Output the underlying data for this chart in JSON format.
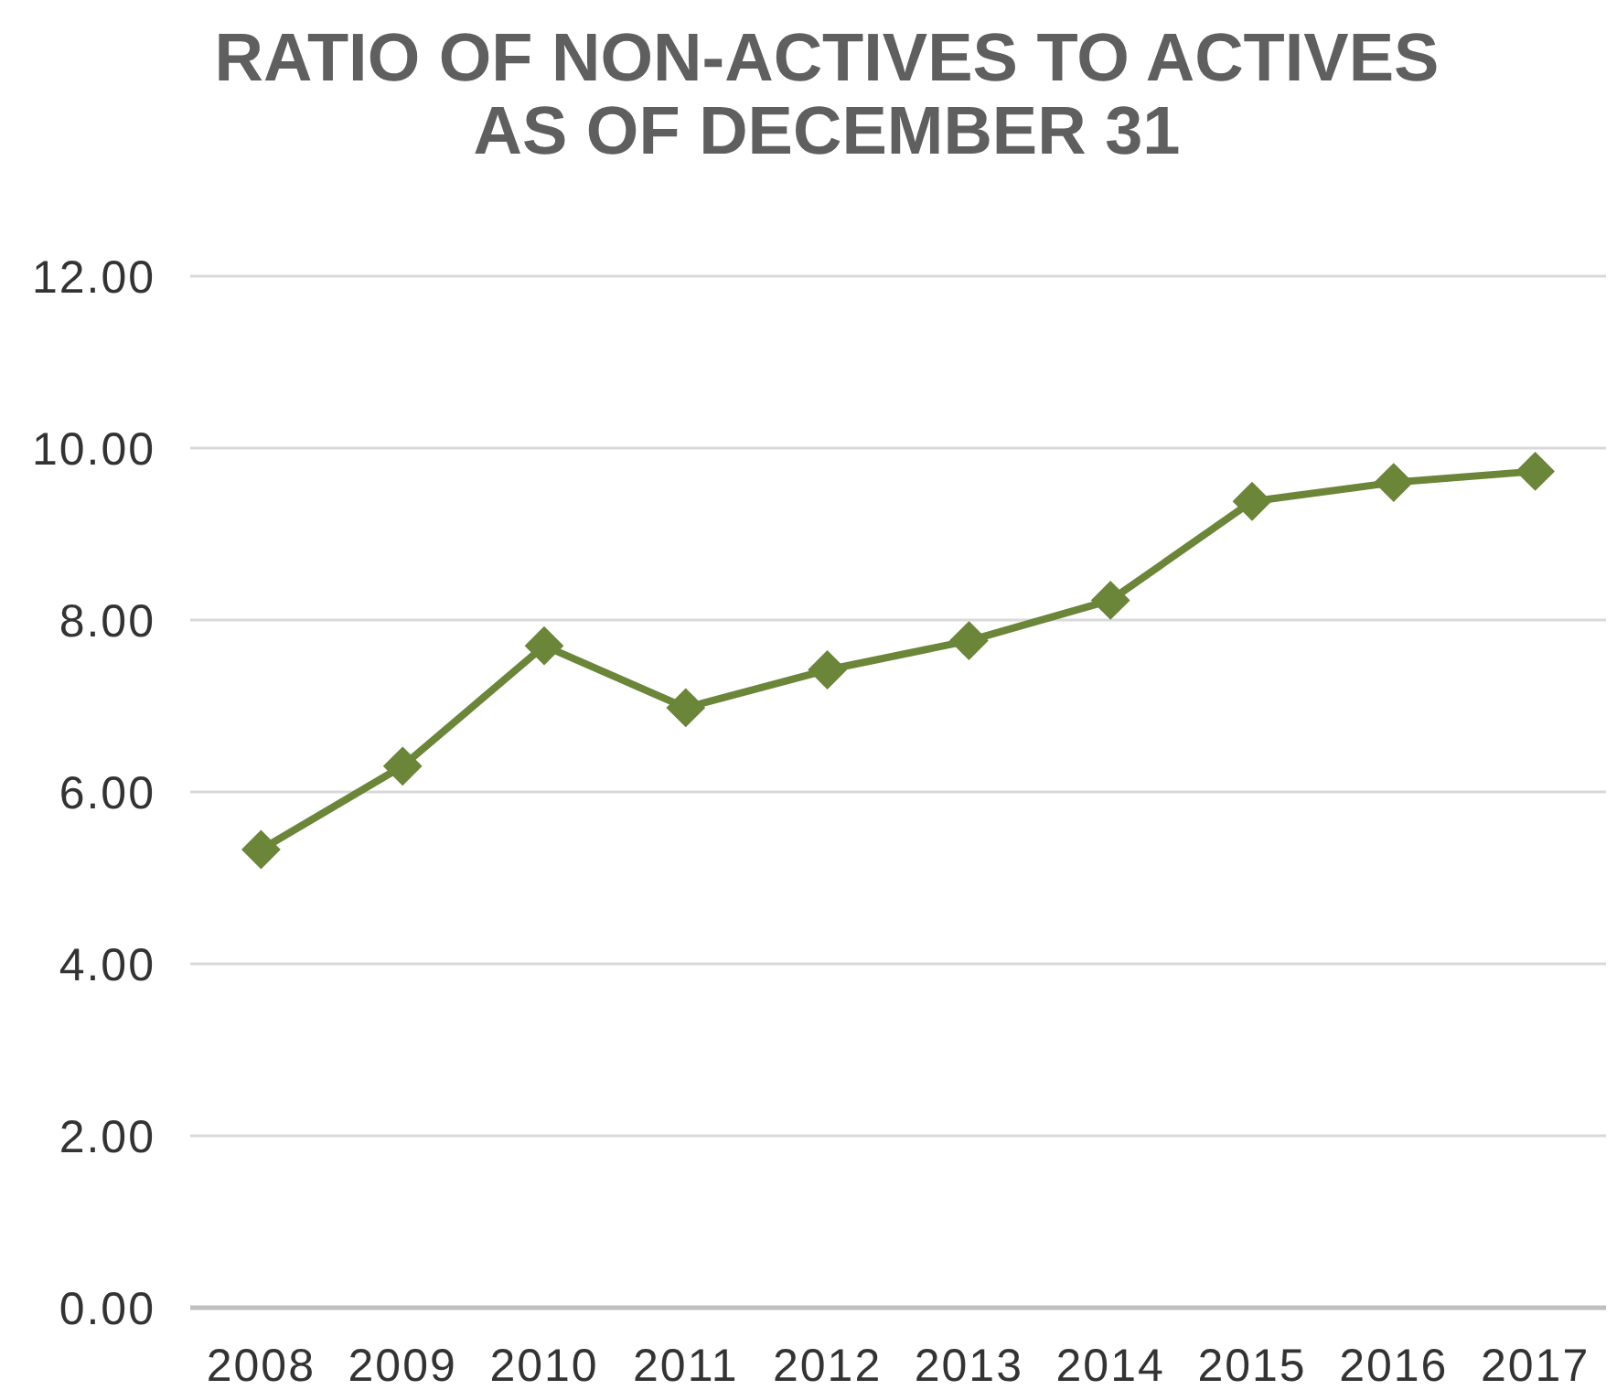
{
  "chart_data": {
    "type": "line",
    "title": "RATIO OF NON-ACTIVES TO ACTIVES\nAS OF DECEMBER 31",
    "categories": [
      "2008",
      "2009",
      "2010",
      "2011",
      "2012",
      "2013",
      "2014",
      "2015",
      "2016",
      "2017"
    ],
    "series": [
      {
        "color": "#6b8539",
        "values": [
          5.33,
          6.3,
          7.7,
          6.98,
          7.42,
          7.76,
          8.23,
          9.38,
          9.6,
          9.73
        ]
      }
    ],
    "ylim": [
      0,
      12
    ],
    "yticks": [
      {
        "value": 0,
        "label": "0.00"
      },
      {
        "value": 2,
        "label": "2.00"
      },
      {
        "value": 4,
        "label": "4.00"
      },
      {
        "value": 6,
        "label": "6.00"
      },
      {
        "value": 8,
        "label": "8.00"
      },
      {
        "value": 10,
        "label": "10.00"
      },
      {
        "value": 12,
        "label": "12.00"
      }
    ],
    "grid": "y",
    "marker": "diamond",
    "line_style": "solid"
  }
}
